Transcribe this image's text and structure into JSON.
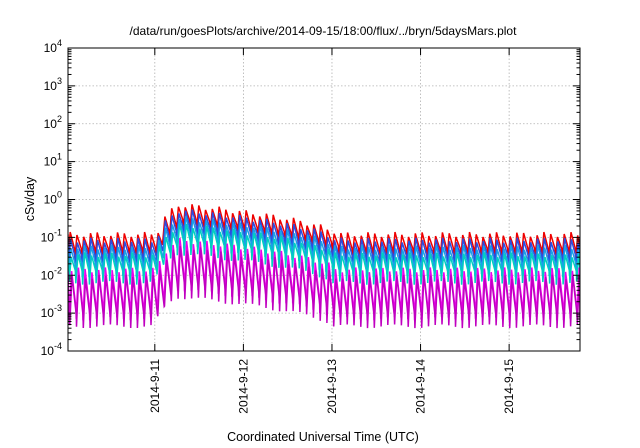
{
  "chart_data": {
    "type": "line",
    "title": "/data/run/goesPlots/archive/2014-09-15/18:00/flux/../bryn/5daysMars.plot",
    "xlabel": "Coordinated Universal Time (UTC)",
    "ylabel": "cSv/day",
    "yscale": "log",
    "ylim": [
      0.0001,
      10000
    ],
    "xlim": [
      -0.98,
      4.8
    ],
    "x_unit": "days since 2014-9-11 00:00 UTC",
    "xtick_labels": [
      "2014-9-11",
      "2014-9-12",
      "2014-9-13",
      "2014-9-14",
      "2014-9-15"
    ],
    "ytick_labels": [
      {
        "base": "10",
        "exp": "-4"
      },
      {
        "base": "10",
        "exp": "-3"
      },
      {
        "base": "10",
        "exp": "-2"
      },
      {
        "base": "10",
        "exp": "-1"
      },
      {
        "base": "10",
        "exp": "0"
      },
      {
        "base": "10",
        "exp": "1"
      },
      {
        "base": "10",
        "exp": "2"
      },
      {
        "base": "10",
        "exp": "3"
      },
      {
        "base": "10",
        "exp": "4"
      }
    ],
    "grid": true,
    "orbit_period_days": 0.0764,
    "enhancement_days": [
      0.0,
      2.0
    ],
    "series": [
      {
        "color": "#ee0000",
        "peak": 0.12,
        "trough": 0.028
      },
      {
        "color": "#2a4de0",
        "peak": 0.085,
        "trough": 0.018
      },
      {
        "color": "#1aa0e8",
        "peak": 0.055,
        "trough": 0.011
      },
      {
        "color": "#00d0c0",
        "peak": 0.035,
        "trough": 0.007
      },
      {
        "color": "#ee00ee",
        "peak": 0.014,
        "trough": 0.0008
      },
      {
        "color": "#c000c0",
        "peak": 0.009,
        "trough": 0.0005
      }
    ]
  }
}
